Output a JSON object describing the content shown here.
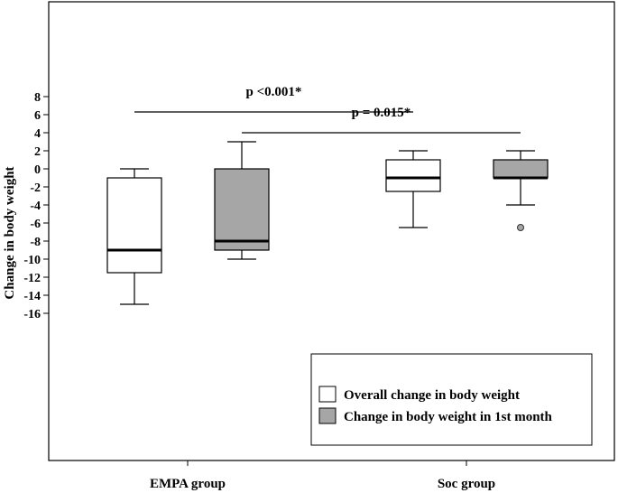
{
  "chart_data": {
    "type": "boxplot",
    "ylabel": "Change in body weight",
    "xlabel": "",
    "ylim": [
      -16,
      8
    ],
    "yticks": [
      8,
      6,
      4,
      2,
      0,
      -2,
      -4,
      -6,
      -8,
      -10,
      -12,
      -14,
      -16
    ],
    "categories": [
      "EMPA group",
      "Soc group"
    ],
    "legend_position": "bottom-right",
    "series": [
      {
        "name": "Overall change in body weight",
        "color": "#ffffff",
        "boxes": [
          {
            "category": "EMPA group",
            "min": -15,
            "q1": -11.5,
            "median": -9,
            "q3": -1,
            "max": 0,
            "outliers": []
          },
          {
            "category": "Soc group",
            "min": -6.5,
            "q1": -2.5,
            "median": -1,
            "q3": 1,
            "max": 2,
            "outliers": []
          }
        ]
      },
      {
        "name": "Change in body weight in 1st month",
        "color": "#a6a6a6",
        "boxes": [
          {
            "category": "EMPA group",
            "min": -10,
            "q1": -9,
            "median": -8,
            "q3": 0,
            "max": 3,
            "outliers": []
          },
          {
            "category": "Soc group",
            "min": -4,
            "q1": -1,
            "median": -1,
            "q3": 1,
            "max": 2,
            "outliers": [
              -6.5
            ]
          }
        ]
      }
    ],
    "annotations": [
      {
        "text": "p <0.001*",
        "from": "EMPA group / Overall change in body weight",
        "to": "Soc group / Overall change in body weight",
        "y": 6.3
      },
      {
        "text": "p = 0.015*",
        "from": "EMPA group / Change in body weight in 1st month",
        "to": "Soc group / Change in body weight in 1st month",
        "y": 4
      }
    ]
  }
}
